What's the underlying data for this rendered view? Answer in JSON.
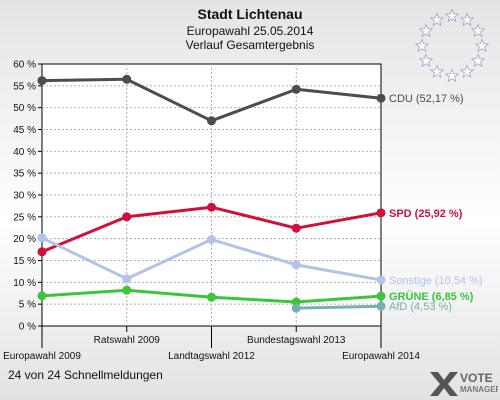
{
  "title": "Stadt Lichtenau",
  "subtitle": "Europawahl 25.05.2014",
  "subtitle2": "Verlauf Gesamtergebnis",
  "footer": "24 von 24 Schnellmeldungen",
  "logo": {
    "line1": "VOTE",
    "line2": "MANAGER"
  },
  "chart_data": {
    "type": "line",
    "categories": [
      "Europawahl 2009",
      "Ratswahl 2009",
      "Landtagswahl 2012",
      "Bundestagswahl 2013",
      "Europawahl 2014"
    ],
    "ylim": [
      0,
      60
    ],
    "yticks": [
      "0 %",
      "5 %",
      "10 %",
      "15 %",
      "20 %",
      "25 %",
      "30 %",
      "35 %",
      "40 %",
      "45 %",
      "50 %",
      "55 %",
      "60 %"
    ],
    "grid": true,
    "series": [
      {
        "name": "CDU",
        "label": "CDU (52,17 %)",
        "color": "#4d4d4d",
        "values": [
          56.2,
          56.5,
          47.0,
          54.2,
          52.17
        ]
      },
      {
        "name": "SPD",
        "label": "SPD (25,92 %)",
        "color": "#d0103a",
        "values": [
          17.0,
          25.0,
          27.2,
          22.4,
          25.92
        ]
      },
      {
        "name": "Sonstige",
        "label": "Sonstige (10,54 %)",
        "color": "#b3c3e8",
        "values": [
          20.2,
          10.8,
          19.8,
          14.0,
          10.54
        ]
      },
      {
        "name": "GRÜNE",
        "label": "GRÜNE (6,85 %)",
        "color": "#3cc43c",
        "values": [
          6.9,
          8.2,
          6.6,
          5.5,
          6.85
        ]
      },
      {
        "name": "AfD",
        "label": "AfD (4,53 %)",
        "color": "#77b0b0",
        "values": [
          null,
          null,
          null,
          4.1,
          4.53
        ]
      }
    ]
  }
}
